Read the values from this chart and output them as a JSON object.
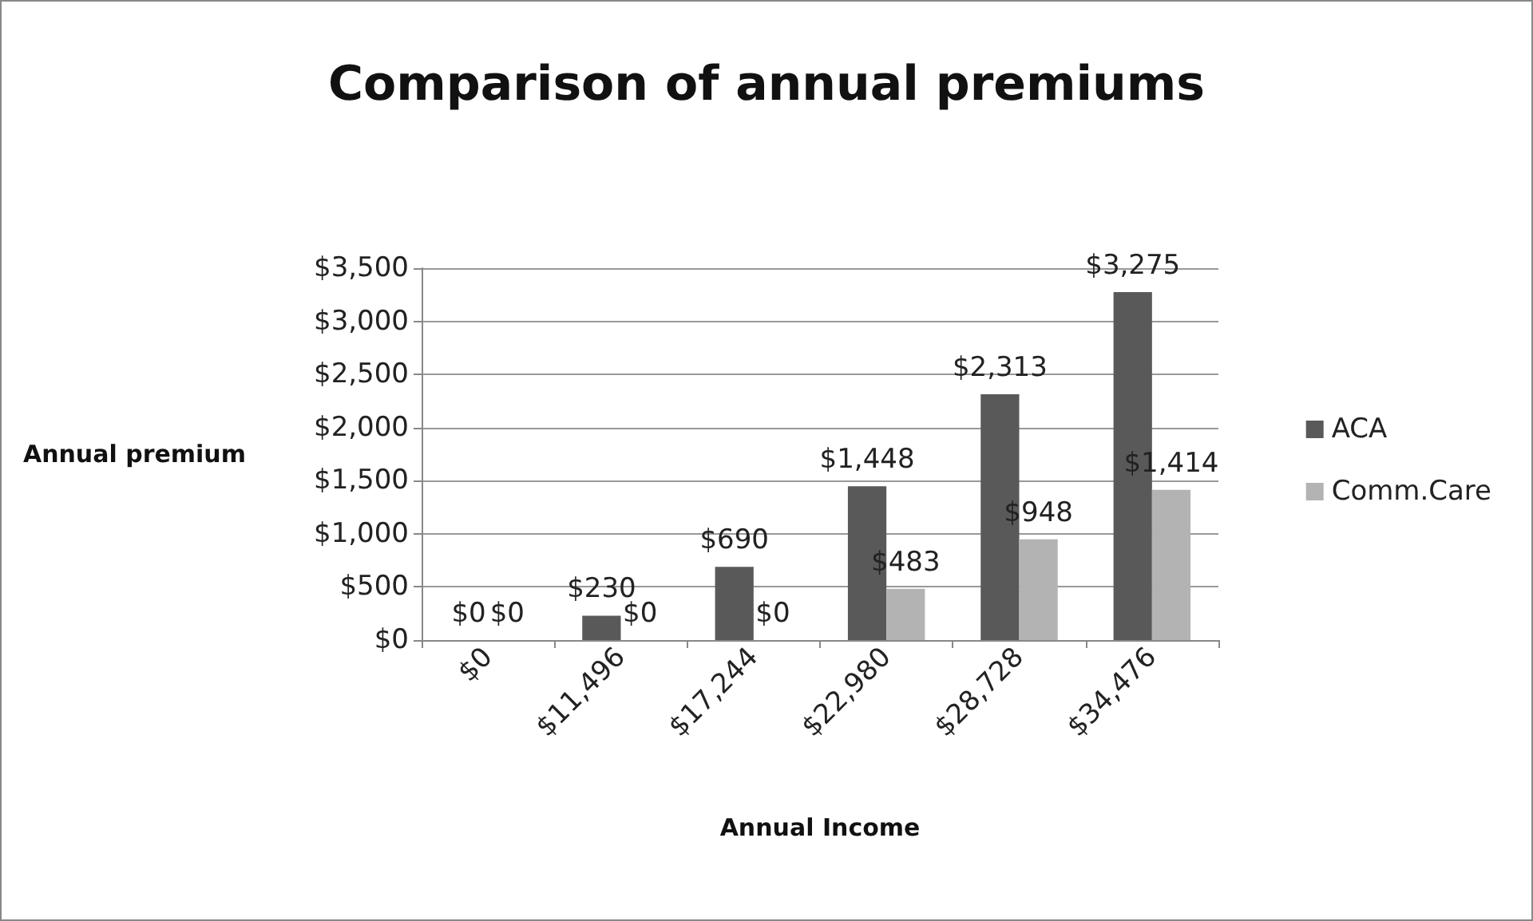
{
  "chart_data": {
    "type": "bar",
    "title": "Comparison of annual premiums",
    "xlabel": "Annual Income",
    "ylabel": "Annual premium",
    "categories": [
      "$0",
      "$11,496",
      "$17,244",
      "$22,980",
      "$28,728",
      "$34,476"
    ],
    "series": [
      {
        "name": "ACA",
        "color": "#595959",
        "values": [
          0,
          230,
          690,
          1448,
          2313,
          3275
        ],
        "value_labels": [
          "$0",
          "$230",
          "$690",
          "$1,448",
          "$2,313",
          "$3,275"
        ]
      },
      {
        "name": "Comm.Care",
        "color": "#b3b3b3",
        "values": [
          0,
          0,
          0,
          483,
          948,
          1414
        ],
        "value_labels": [
          "$0",
          "$0",
          "$0",
          "$483",
          "$948",
          "$1,414"
        ]
      }
    ],
    "ylim": [
      0,
      3500
    ],
    "yticks": [
      {
        "value": 0,
        "label": "$0"
      },
      {
        "value": 500,
        "label": "$500"
      },
      {
        "value": 1000,
        "label": "$1,000"
      },
      {
        "value": 1500,
        "label": "$1,500"
      },
      {
        "value": 2000,
        "label": "$2,000"
      },
      {
        "value": 2500,
        "label": "$2,500"
      },
      {
        "value": 3000,
        "label": "$3,000"
      },
      {
        "value": 3500,
        "label": "$3,500"
      }
    ],
    "grid": "y",
    "legend": "right"
  }
}
